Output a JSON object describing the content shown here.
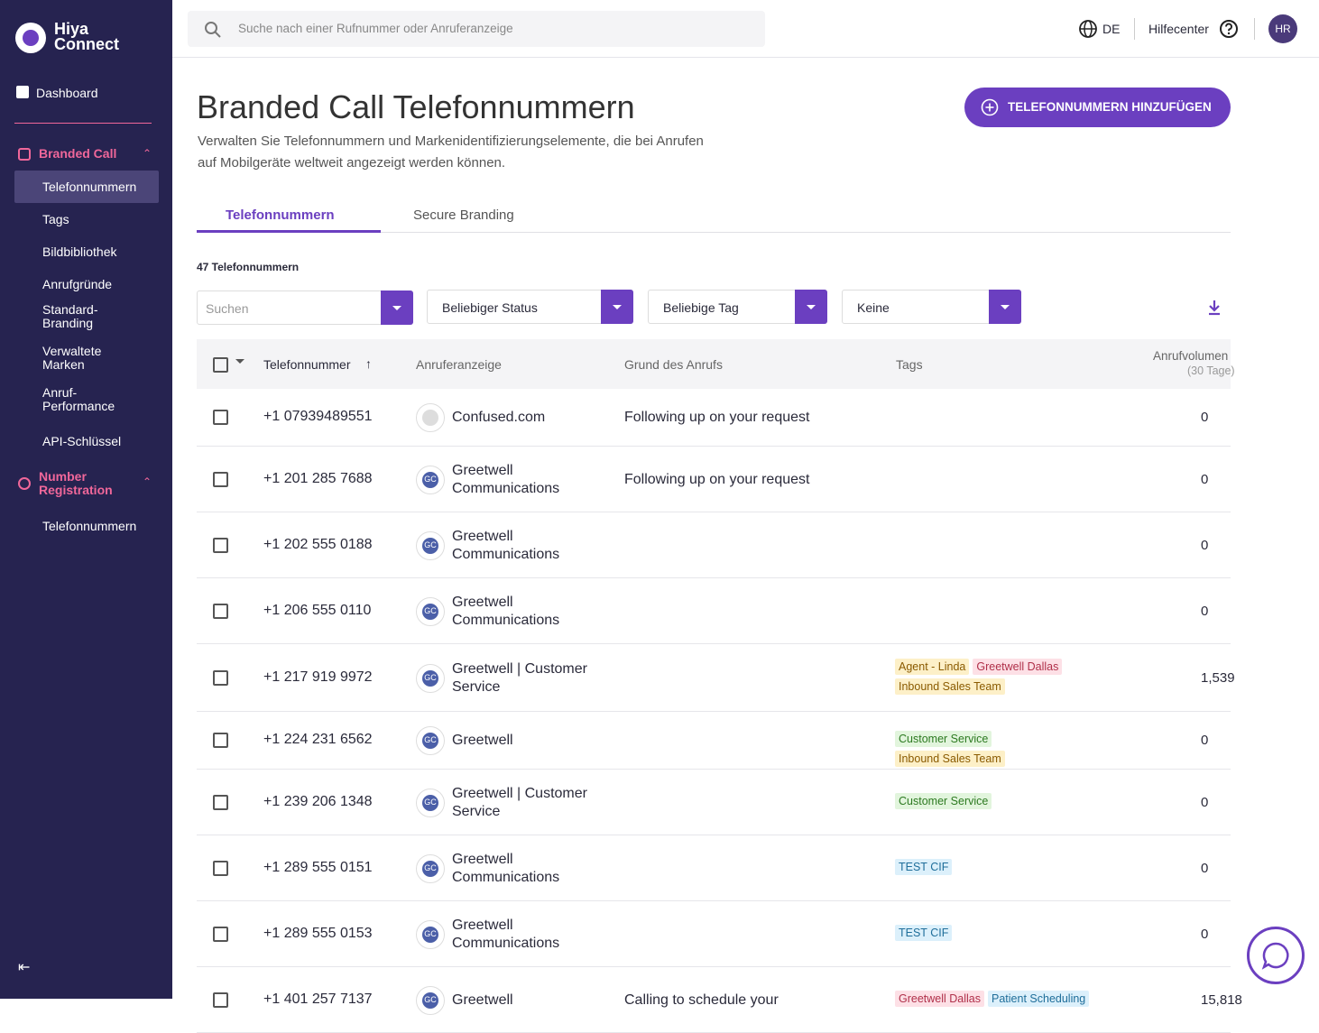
{
  "sidebar": {
    "logo_line1": "Hiya",
    "logo_line2": "Connect",
    "dashboard": "Dashboard",
    "sections": [
      {
        "title": "Branded Call",
        "items": [
          "Telefonnummern",
          "Tags",
          "Bildbibliothek",
          "Anrufgründe",
          "Standard-\nBranding",
          "Verwaltete\nMarken",
          "Anruf-\nPerformance",
          "API-Schlüssel"
        ]
      },
      {
        "title": "Number\nRegistration",
        "items": [
          "Telefonnummern"
        ]
      }
    ]
  },
  "header": {
    "search_placeholder": "Suche nach einer Rufnummer oder Anruferanzeige",
    "language": "DE",
    "help": "Hilfecenter",
    "user": "HR"
  },
  "page": {
    "title": "Branded Call Telefonnummern",
    "description": "Verwalten Sie Telefonnummern und Markenidentifizierungselemente, die bei Anrufen auf Mobilgeräte weltweit angezeigt werden können.",
    "add_button": "TELEFONNUMMERN HINZUFÜGEN",
    "tabs": [
      "Telefonnummern",
      "Secure Branding"
    ],
    "count": "47 Telefonnummern"
  },
  "filters": {
    "search": "Suchen",
    "status": "Beliebiger Status",
    "tag": "Beliebige Tag",
    "other": "Keine"
  },
  "table": {
    "columns": [
      "Telefonnummer",
      "Anruferanzeige",
      "Grund des Anrufs",
      "Tags"
    ],
    "volume_header": "Anrufvolumen",
    "volume_sub": "(30 Tage)",
    "rows": [
      {
        "phone": "+1 07939489551",
        "display": "Confused.com",
        "avatar": "",
        "reason": "Following up on your request",
        "tags": [],
        "volume": "0"
      },
      {
        "phone": "+1 201 285 7688",
        "display": "Greetwell Communications",
        "avatar": "GC",
        "reason": "Following up on your request",
        "tags": [],
        "volume": "0"
      },
      {
        "phone": "+1 202 555 0188",
        "display": "Greetwell Communications",
        "avatar": "GC",
        "reason": "",
        "tags": [],
        "volume": "0"
      },
      {
        "phone": "+1 206 555 0110",
        "display": "Greetwell Communications",
        "avatar": "GC",
        "reason": "",
        "tags": [],
        "volume": "0"
      },
      {
        "phone": "+1 217 919 9972",
        "display": "Greetwell | Customer Service",
        "avatar": "GC",
        "reason": "",
        "tags": [
          {
            "label": "Agent - Linda",
            "color": "yellow"
          },
          {
            "label": "Greetwell Dallas",
            "color": "pink"
          },
          {
            "label": "Inbound Sales Team",
            "color": "yellow"
          }
        ],
        "volume": "1,539"
      },
      {
        "phone": "+1 224 231 6562",
        "display": "Greetwell",
        "avatar": "GC",
        "reason": "",
        "tags": [
          {
            "label": "Customer Service",
            "color": "green"
          },
          {
            "label": "Inbound Sales Team",
            "color": "yellow"
          }
        ],
        "volume": "0"
      },
      {
        "phone": "+1 239 206 1348",
        "display": "Greetwell | Customer Service",
        "avatar": "GC",
        "reason": "",
        "tags": [
          {
            "label": "Customer Service",
            "color": "green"
          }
        ],
        "volume": "0"
      },
      {
        "phone": "+1 289 555 0151",
        "display": "Greetwell Communications",
        "avatar": "GC",
        "reason": "",
        "tags": [
          {
            "label": "TEST CIF",
            "color": "blue"
          }
        ],
        "volume": "0"
      },
      {
        "phone": "+1 289 555 0153",
        "display": "Greetwell Communications",
        "avatar": "GC",
        "reason": "",
        "tags": [
          {
            "label": "TEST CIF",
            "color": "blue"
          }
        ],
        "volume": "0"
      },
      {
        "phone": "+1 401 257 7137",
        "display": "Greetwell",
        "avatar": "GC",
        "reason": "Calling to schedule your",
        "tags": [
          {
            "label": "Greetwell Dallas",
            "color": "pink"
          },
          {
            "label": "Patient Scheduling",
            "color": "blue"
          }
        ],
        "volume": "15,818"
      }
    ]
  }
}
